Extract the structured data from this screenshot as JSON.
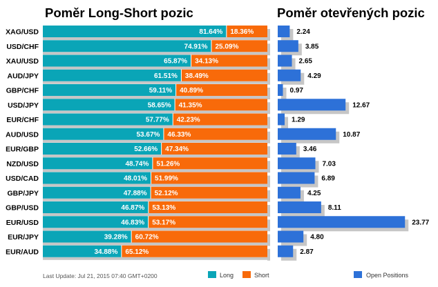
{
  "colors": {
    "long": "#0AA5B7",
    "short": "#F86A0A",
    "open_positions": "#2D71D8",
    "shadow": "#C6C6C6"
  },
  "chart_data": [
    {
      "type": "bar",
      "stacked": true,
      "orientation": "horizontal",
      "title": "Poměr Long-Short pozic",
      "categories": [
        "XAG/USD",
        "USD/CHF",
        "XAU/USD",
        "AUD/JPY",
        "GBP/CHF",
        "USD/JPY",
        "EUR/CHF",
        "AUD/USD",
        "EUR/GBP",
        "NZD/USD",
        "USD/CAD",
        "GBP/JPY",
        "GBP/USD",
        "EUR/USD",
        "EUR/JPY",
        "EUR/AUD"
      ],
      "series": [
        {
          "name": "Long",
          "color": "#0AA5B7",
          "values": [
            81.64,
            74.91,
            65.87,
            61.51,
            59.11,
            58.65,
            57.77,
            53.67,
            52.66,
            48.74,
            48.01,
            47.88,
            46.87,
            46.83,
            39.28,
            34.88
          ]
        },
        {
          "name": "Short",
          "color": "#F86A0A",
          "values": [
            18.36,
            25.09,
            34.13,
            38.49,
            40.89,
            41.35,
            42.23,
            46.33,
            47.34,
            51.26,
            51.99,
            52.12,
            53.13,
            53.17,
            60.72,
            65.12
          ]
        }
      ],
      "value_labels": {
        "long": [
          "81.64%",
          "74.91%",
          "65.87%",
          "61.51%",
          "59.11%",
          "58.65%",
          "57.77%",
          "53.67%",
          "52.66%",
          "48.74%",
          "48.01%",
          "47.88%",
          "46.87%",
          "46.83%",
          "39.28%",
          "34.88%"
        ],
        "short": [
          "18.36%",
          "25.09%",
          "34.13%",
          "38.49%",
          "40.89%",
          "41.35%",
          "42.23%",
          "46.33%",
          "47.34%",
          "51.26%",
          "51.99%",
          "52.12%",
          "53.13%",
          "53.17%",
          "60.72%",
          "65.12%"
        ]
      },
      "xlim": [
        0,
        100
      ],
      "grid": false,
      "legend_position": "bottom"
    },
    {
      "type": "bar",
      "orientation": "horizontal",
      "title": "Poměr otevřených pozic",
      "categories": [
        "XAG/USD",
        "USD/CHF",
        "XAU/USD",
        "AUD/JPY",
        "GBP/CHF",
        "USD/JPY",
        "EUR/CHF",
        "AUD/USD",
        "EUR/GBP",
        "NZD/USD",
        "USD/CAD",
        "GBP/JPY",
        "GBP/USD",
        "EUR/USD",
        "EUR/JPY",
        "EUR/AUD"
      ],
      "series": [
        {
          "name": "Open Positions",
          "color": "#2D71D8",
          "values": [
            2.24,
            3.85,
            2.65,
            4.29,
            0.97,
            12.67,
            1.29,
            10.87,
            3.46,
            7.03,
            6.89,
            4.25,
            8.11,
            23.77,
            4.8,
            2.87
          ]
        }
      ],
      "value_labels": [
        "2.24",
        "3.85",
        "2.65",
        "4.29",
        "0.97",
        "12.67",
        "1.29",
        "10.87",
        "3.46",
        "7.03",
        "6.89",
        "4.25",
        "8.11",
        "23.77",
        "4.80",
        "2.87"
      ],
      "grid": false,
      "legend_position": "bottom"
    }
  ],
  "legend": {
    "long": "Long",
    "short": "Short",
    "open_positions": "Open Positions"
  },
  "footer": {
    "last_update": "Last Update: Jul 21, 2015 07:40 GMT+0200"
  }
}
